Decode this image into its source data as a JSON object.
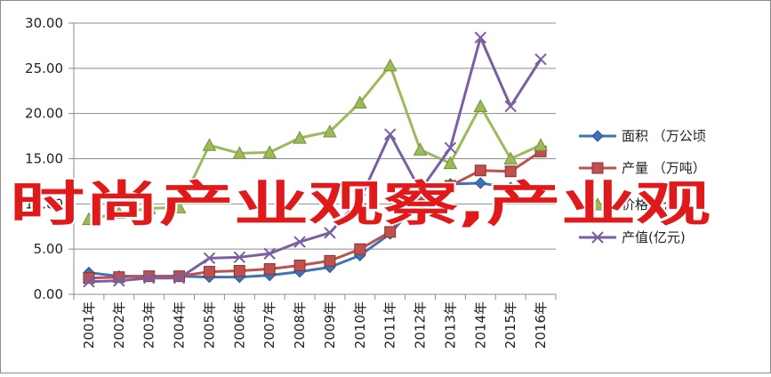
{
  "overlay_text": "时尚产业观察,产业观",
  "colors": {
    "area": "#3e73b8",
    "output": "#c0504d",
    "price": "#9bbb59",
    "value": "#7a5fa3",
    "overlay": "#e0191b"
  },
  "chart_data": {
    "type": "line",
    "title": "",
    "xlabel": "",
    "ylabel": "",
    "x": [
      "2001年",
      "2002年",
      "2003年",
      "2004年",
      "2005年",
      "2006年",
      "2007年",
      "2008年",
      "2009年",
      "2010年",
      "2011年",
      "2012年",
      "2013年",
      "2014年",
      "2015年",
      "2016年"
    ],
    "ylim": [
      0,
      30
    ],
    "yticks": [
      "0.00",
      "5.00",
      "10.00",
      "15.00",
      "20.00",
      "25.00",
      "30.00"
    ],
    "grid": true,
    "legend_position": "right",
    "series": [
      {
        "name": "面积 （万公顷",
        "color": "#3e73b8",
        "marker": "diamond",
        "values": [
          2.4,
          2.0,
          2.0,
          2.0,
          1.9,
          1.9,
          2.1,
          2.5,
          3.0,
          4.3,
          6.7,
          10.5,
          12.2,
          12.3,
          11.8,
          11.6
        ]
      },
      {
        "name": "产量 （万吨）",
        "color": "#c0504d",
        "marker": "square",
        "values": [
          1.8,
          1.9,
          2.0,
          2.0,
          2.5,
          2.6,
          2.8,
          3.2,
          3.7,
          5.0,
          6.9,
          11.0,
          12.0,
          13.7,
          13.6,
          15.8
        ]
      },
      {
        "name": "价格(元/kg)",
        "color": "#9bbb59",
        "marker": "triangle",
        "values": [
          8.3,
          9.0,
          9.5,
          9.6,
          16.5,
          15.6,
          15.7,
          17.3,
          18.0,
          21.2,
          25.3,
          16.0,
          14.5,
          20.8,
          15.0,
          16.5
        ]
      },
      {
        "name": "产值(亿元)",
        "color": "#7a5fa3",
        "marker": "x",
        "values": [
          1.4,
          1.5,
          1.8,
          1.8,
          4.0,
          4.1,
          4.5,
          5.8,
          6.8,
          10.5,
          17.7,
          11.5,
          16.2,
          28.4,
          20.8,
          26.0
        ]
      }
    ]
  }
}
